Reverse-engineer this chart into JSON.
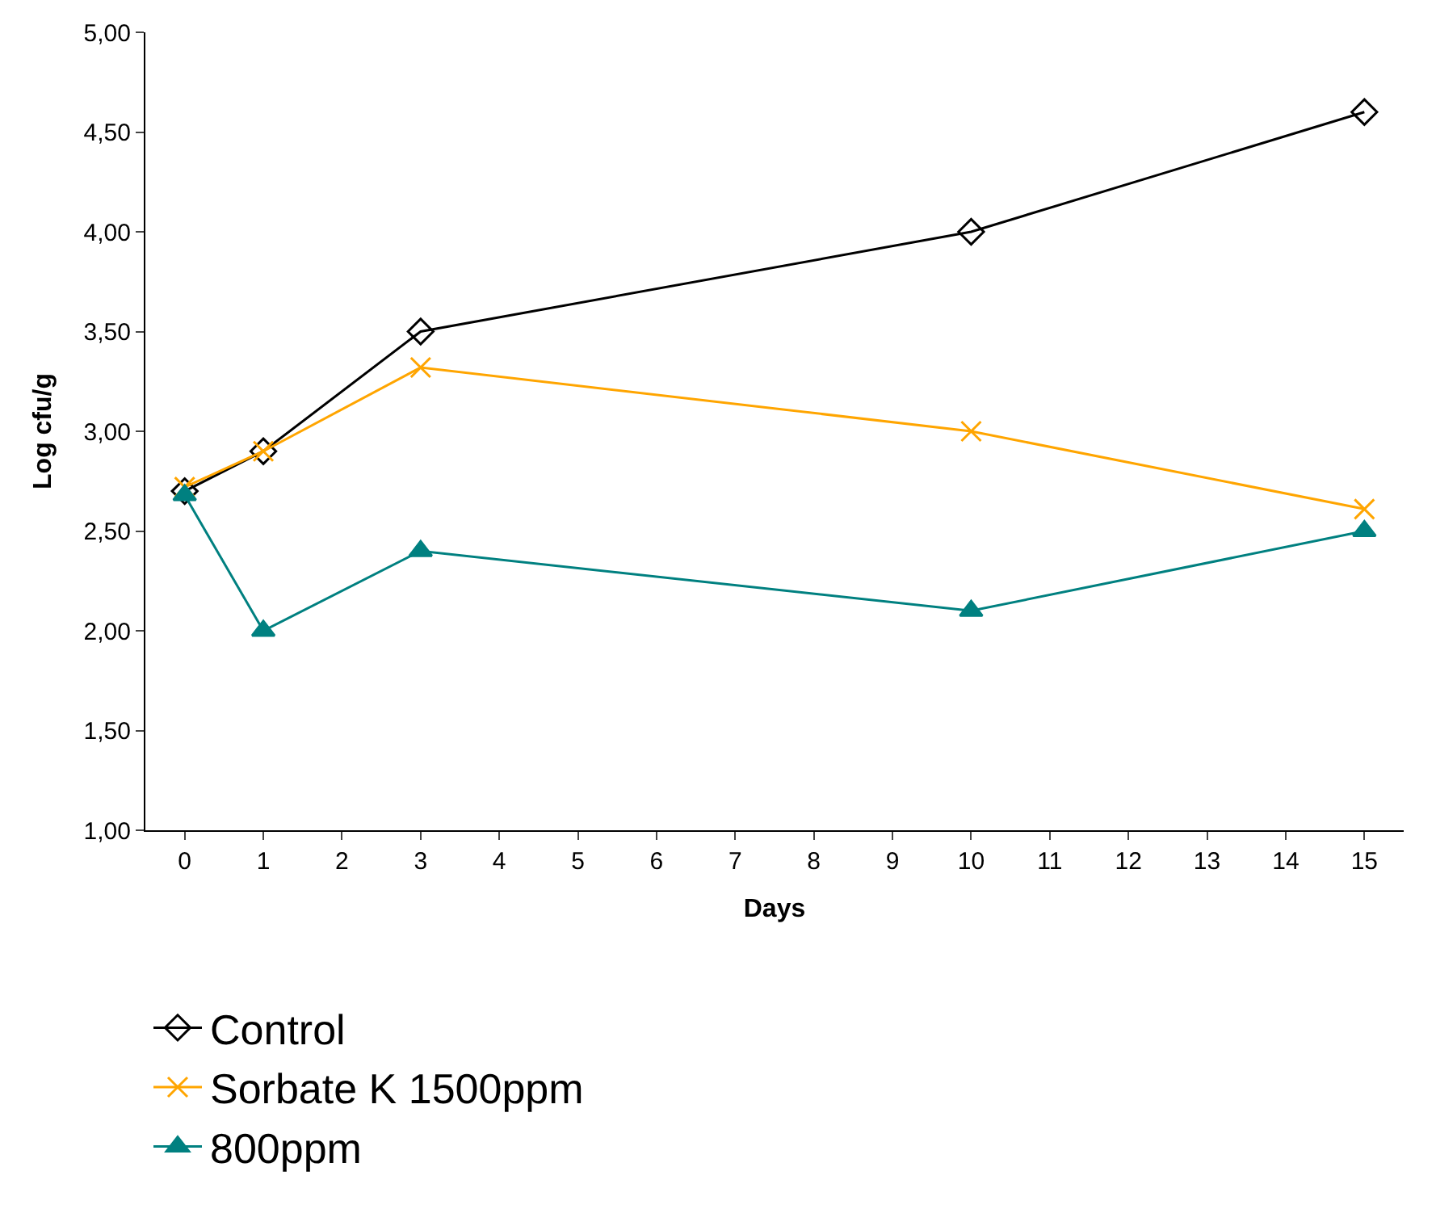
{
  "chart_data": {
    "type": "line",
    "xlabel": "Days",
    "ylabel": "Log cfu/g",
    "xlim": [
      -0.5,
      15.5
    ],
    "xticks": [
      0,
      1,
      2,
      3,
      4,
      5,
      6,
      7,
      8,
      9,
      10,
      11,
      12,
      13,
      14,
      15
    ],
    "ylim": [
      1,
      5
    ],
    "yticks": [
      {
        "value": 1,
        "label": "1,00"
      },
      {
        "value": 1.5,
        "label": "1,50"
      },
      {
        "value": 2,
        "label": "2,00"
      },
      {
        "value": 2.5,
        "label": "2,50"
      },
      {
        "value": 3,
        "label": "3,00"
      },
      {
        "value": 3.5,
        "label": "3,50"
      },
      {
        "value": 4,
        "label": "4,00"
      },
      {
        "value": 4.5,
        "label": "4,50"
      },
      {
        "value": 5,
        "label": "5,00"
      }
    ],
    "x": [
      0,
      1,
      3,
      10,
      15
    ],
    "legend": "bottom",
    "series": [
      {
        "name": "Control",
        "color": "#000000",
        "marker": "diamond",
        "values": [
          2.7,
          2.9,
          3.5,
          4.0,
          4.6
        ]
      },
      {
        "name": "Sorbate K 1500ppm",
        "color": "#ffa500",
        "marker": "cross",
        "values": [
          2.72,
          2.9,
          3.32,
          3.0,
          2.61
        ]
      },
      {
        "name": "800ppm",
        "color": "#008080",
        "marker": "triangle",
        "values": [
          2.68,
          2.0,
          2.4,
          2.1,
          2.5
        ]
      }
    ]
  }
}
